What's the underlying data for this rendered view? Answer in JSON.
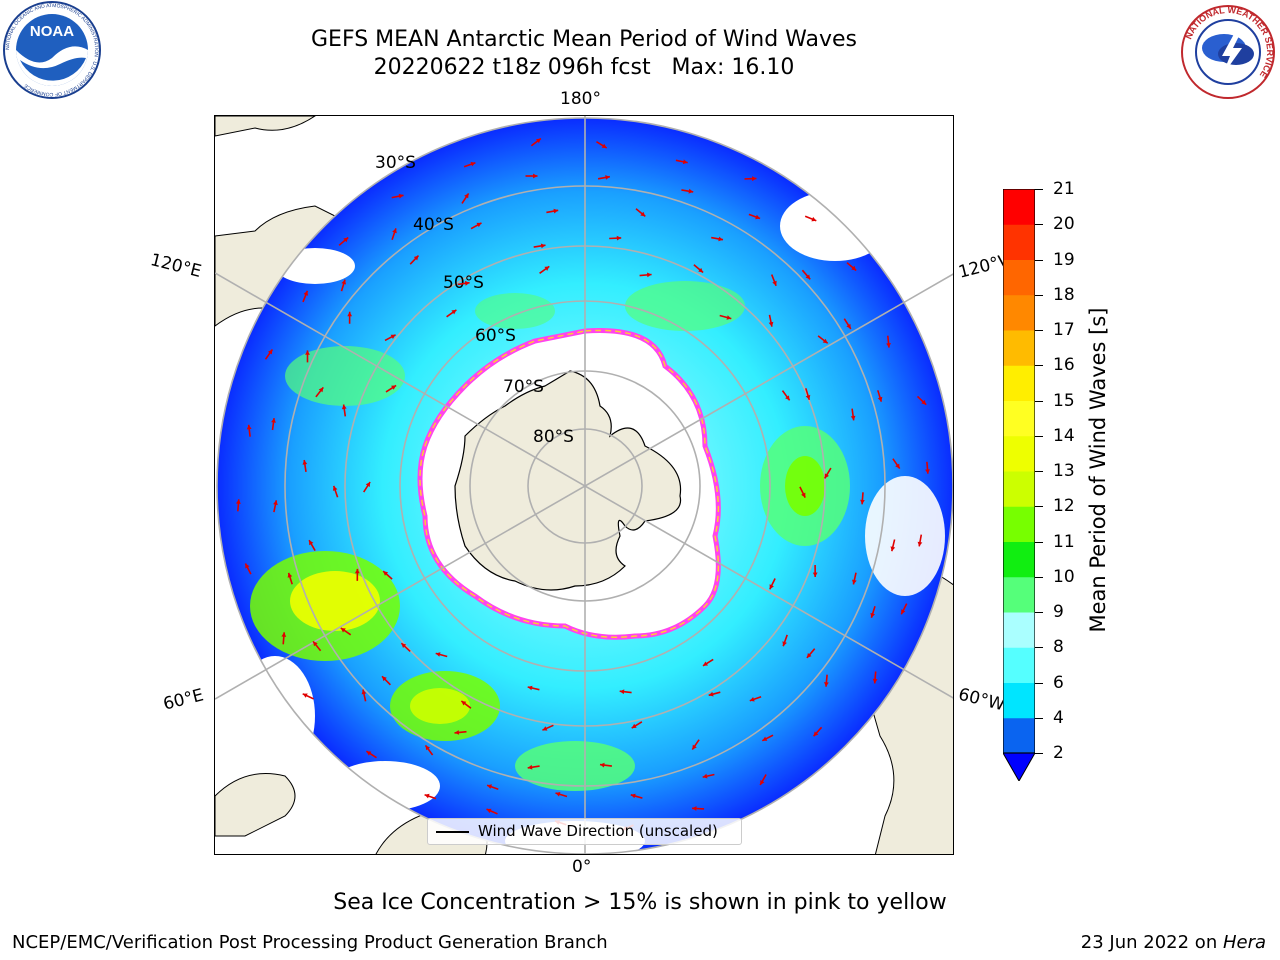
{
  "title": {
    "line1": "GEFS MEAN Antarctic Mean Period of Wind Waves",
    "line2": "20220622 t18z 096h fcst   Max: 16.10"
  },
  "logos": {
    "left": "NOAA",
    "left_ring_text": "NATIONAL OCEANIC AND ATMOSPHERIC ADMINISTRATION · U.S. DEPARTMENT OF COMMERCE",
    "right_ring_text": "NATIONAL WEATHER SERVICE"
  },
  "map": {
    "projection": "south polar stereographic",
    "longitude_labels": {
      "top": "180°",
      "bottom": "0°",
      "upper_left": "120°E",
      "upper_right": "120°W",
      "lower_left": "60°E",
      "lower_right": "60°W"
    },
    "latitude_labels": [
      "30°S",
      "40°S",
      "50°S",
      "60°S",
      "70°S",
      "80°S"
    ],
    "land_color": "#efecdc",
    "ice_edge_colors": [
      "#ff44ee",
      "#ffcc33"
    ]
  },
  "colorbar": {
    "label": "Mean Period of Wind Waves [s]",
    "ticks": [
      "2",
      "4",
      "6",
      "8",
      "9",
      "10",
      "11",
      "12",
      "13",
      "14",
      "15",
      "16",
      "17",
      "18",
      "19",
      "20",
      "21"
    ],
    "colors": [
      "#0a64f0",
      "#00e5ff",
      "#55ffff",
      "#aaffff",
      "#55ff7a",
      "#11ee11",
      "#77ff00",
      "#ccff00",
      "#eeff00",
      "#ffff22",
      "#ffee00",
      "#ffbb00",
      "#ff8800",
      "#ff6600",
      "#ff3300",
      "#ff0000"
    ],
    "extend_color": "#0000ff"
  },
  "legend": {
    "label": "Wind Wave Direction (unscaled)"
  },
  "sea_ice_note": "Sea Ice Concentration > 15% is shown in pink to yellow",
  "footer": {
    "left": "NCEP/EMC/Verification Post Processing Product Generation Branch",
    "right_prefix": "23 Jun 2022 on ",
    "right_host": "Hera"
  }
}
